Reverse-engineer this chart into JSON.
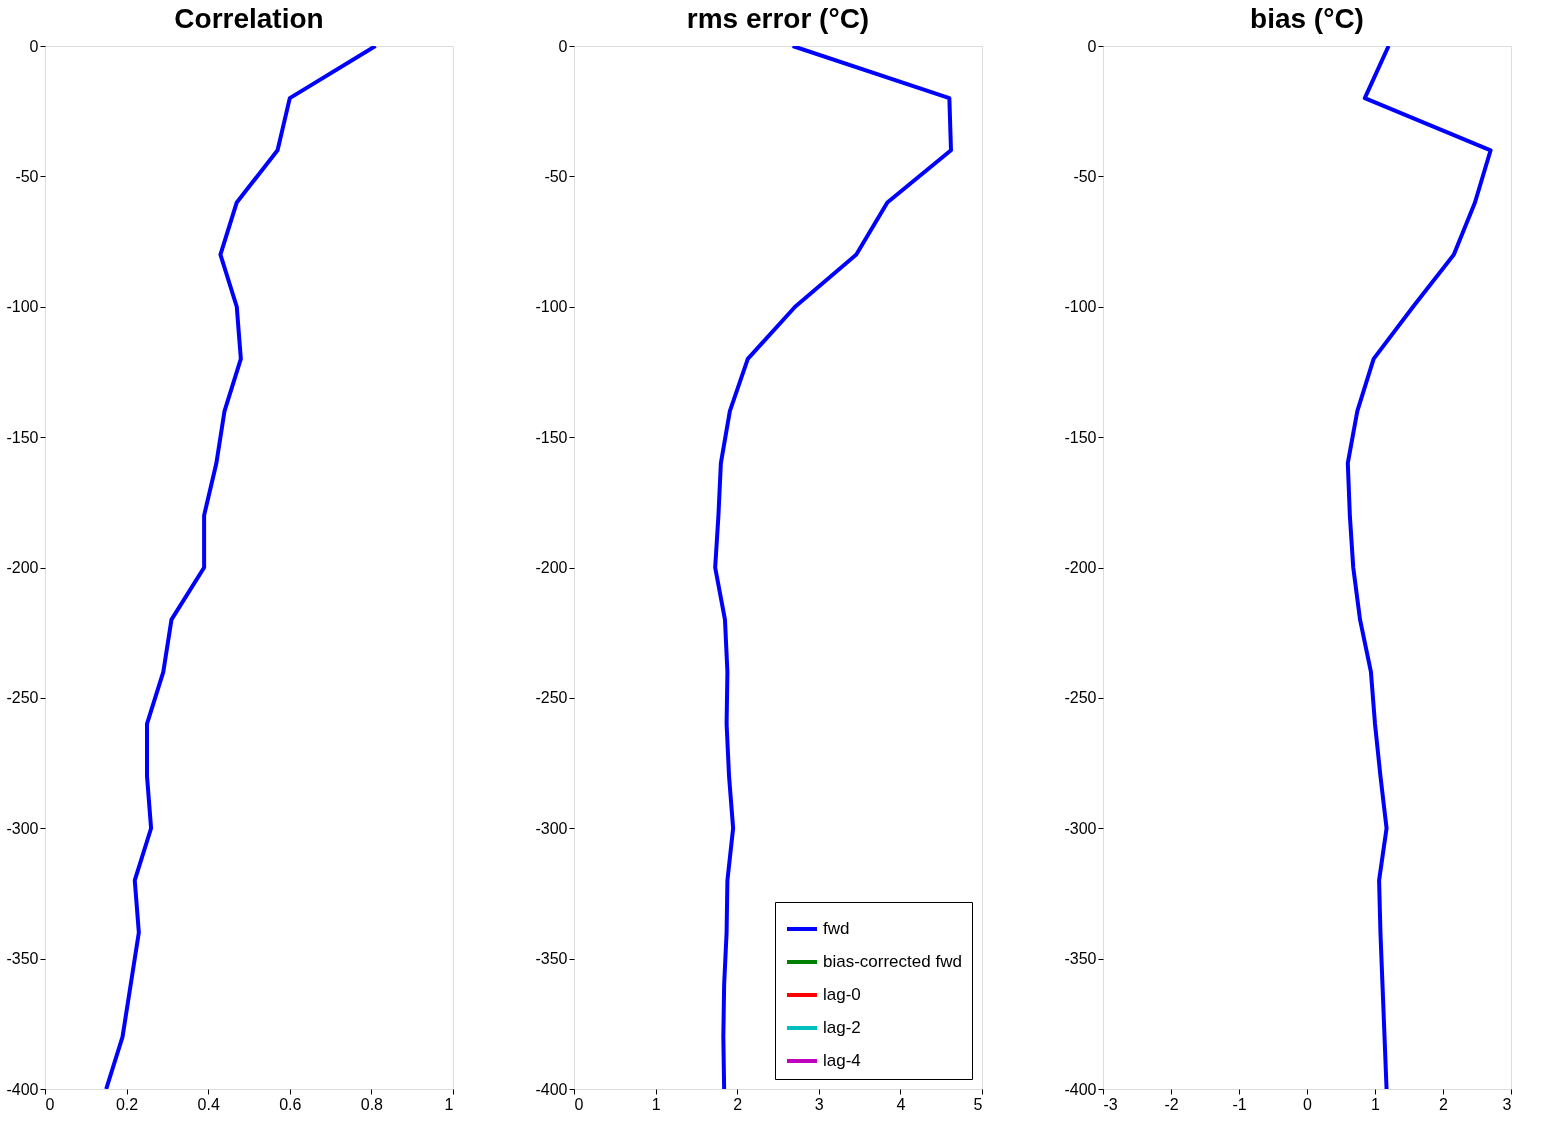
{
  "chart_data": [
    {
      "type": "line",
      "orientation": "horizontal",
      "title": "Correlation",
      "x": [
        0,
        -20,
        -40,
        -60,
        -80,
        -100,
        -120,
        -140,
        -160,
        -180,
        -200,
        -220,
        -240,
        -260,
        -280,
        -300,
        -320,
        -340,
        -360,
        -380,
        -400
      ],
      "series": [
        {
          "color": "#0000ff",
          "values": [
            0.81,
            0.6,
            0.57,
            0.47,
            0.43,
            0.47,
            0.48,
            0.44,
            0.42,
            0.39,
            0.39,
            0.31,
            0.29,
            0.25,
            0.25,
            0.26,
            0.22,
            0.23,
            0.21,
            0.19,
            0.15
          ]
        }
      ],
      "xlim": [
        0,
        1
      ],
      "xticks": [
        0,
        0.2,
        0.4,
        0.6,
        0.8,
        1
      ],
      "ylim": [
        -400,
        0
      ],
      "yticks": [
        -400,
        -350,
        -300,
        -250,
        -200,
        -150,
        -100,
        -50,
        0
      ],
      "grid": false,
      "legend": false
    },
    {
      "type": "line",
      "orientation": "horizontal",
      "title": "rms error (°C)",
      "x": [
        0,
        -20,
        -40,
        -60,
        -80,
        -100,
        -120,
        -140,
        -160,
        -180,
        -200,
        -220,
        -240,
        -260,
        -280,
        -300,
        -320,
        -340,
        -360,
        -380,
        -400
      ],
      "series": [
        {
          "name": "fwd",
          "color": "#0000ff",
          "values": [
            2.68,
            4.6,
            4.62,
            3.84,
            3.46,
            2.71,
            2.13,
            1.91,
            1.8,
            1.77,
            1.73,
            1.85,
            1.88,
            1.87,
            1.9,
            1.95,
            1.88,
            1.87,
            1.84,
            1.83,
            1.84
          ]
        },
        {
          "name": "bias-corrected fwd",
          "color": "#008000",
          "values": [
            null,
            null,
            null,
            null,
            null,
            null,
            null,
            null,
            null,
            null,
            null,
            null,
            null,
            null,
            null,
            null,
            null,
            null,
            null,
            null,
            null
          ]
        },
        {
          "name": "lag-0",
          "color": "#ff0000",
          "values": [
            null,
            null,
            null,
            null,
            null,
            null,
            null,
            null,
            null,
            null,
            null,
            null,
            null,
            null,
            null,
            null,
            null,
            null,
            null,
            null,
            null
          ]
        },
        {
          "name": "lag-2",
          "color": "#00bfbf",
          "values": [
            null,
            null,
            null,
            null,
            null,
            null,
            null,
            null,
            null,
            null,
            null,
            null,
            null,
            null,
            null,
            null,
            null,
            null,
            null,
            null,
            null
          ]
        },
        {
          "name": "lag-4",
          "color": "#bf00bf",
          "values": [
            null,
            null,
            null,
            null,
            null,
            null,
            null,
            null,
            null,
            null,
            null,
            null,
            null,
            null,
            null,
            null,
            null,
            null,
            null,
            null,
            null
          ]
        }
      ],
      "xlim": [
        0,
        5
      ],
      "xticks": [
        0,
        1,
        2,
        3,
        4,
        5
      ],
      "ylim": [
        -400,
        0
      ],
      "yticks": [
        -400,
        -350,
        -300,
        -250,
        -200,
        -150,
        -100,
        -50,
        0
      ],
      "grid": false,
      "legend": "bottom right"
    },
    {
      "type": "line",
      "orientation": "horizontal",
      "title": "bias (°C)",
      "x": [
        0,
        -20,
        -40,
        -60,
        -80,
        -100,
        -120,
        -140,
        -160,
        -180,
        -200,
        -220,
        -240,
        -260,
        -280,
        -300,
        -320,
        -340,
        -360,
        -380,
        -400
      ],
      "series": [
        {
          "color": "#0000ff",
          "values": [
            1.2,
            0.85,
            2.7,
            2.47,
            2.16,
            1.56,
            0.98,
            0.74,
            0.6,
            0.63,
            0.68,
            0.78,
            0.94,
            1.0,
            1.08,
            1.17,
            1.06,
            1.08,
            1.11,
            1.14,
            1.17
          ]
        }
      ],
      "xlim": [
        -3,
        3
      ],
      "xticks": [
        -3,
        -2,
        -1,
        0,
        1,
        2,
        3
      ],
      "ylim": [
        -400,
        0
      ],
      "yticks": [
        -400,
        -350,
        -300,
        -250,
        -200,
        -150,
        -100,
        -50,
        0
      ],
      "grid": false,
      "legend": false
    }
  ]
}
